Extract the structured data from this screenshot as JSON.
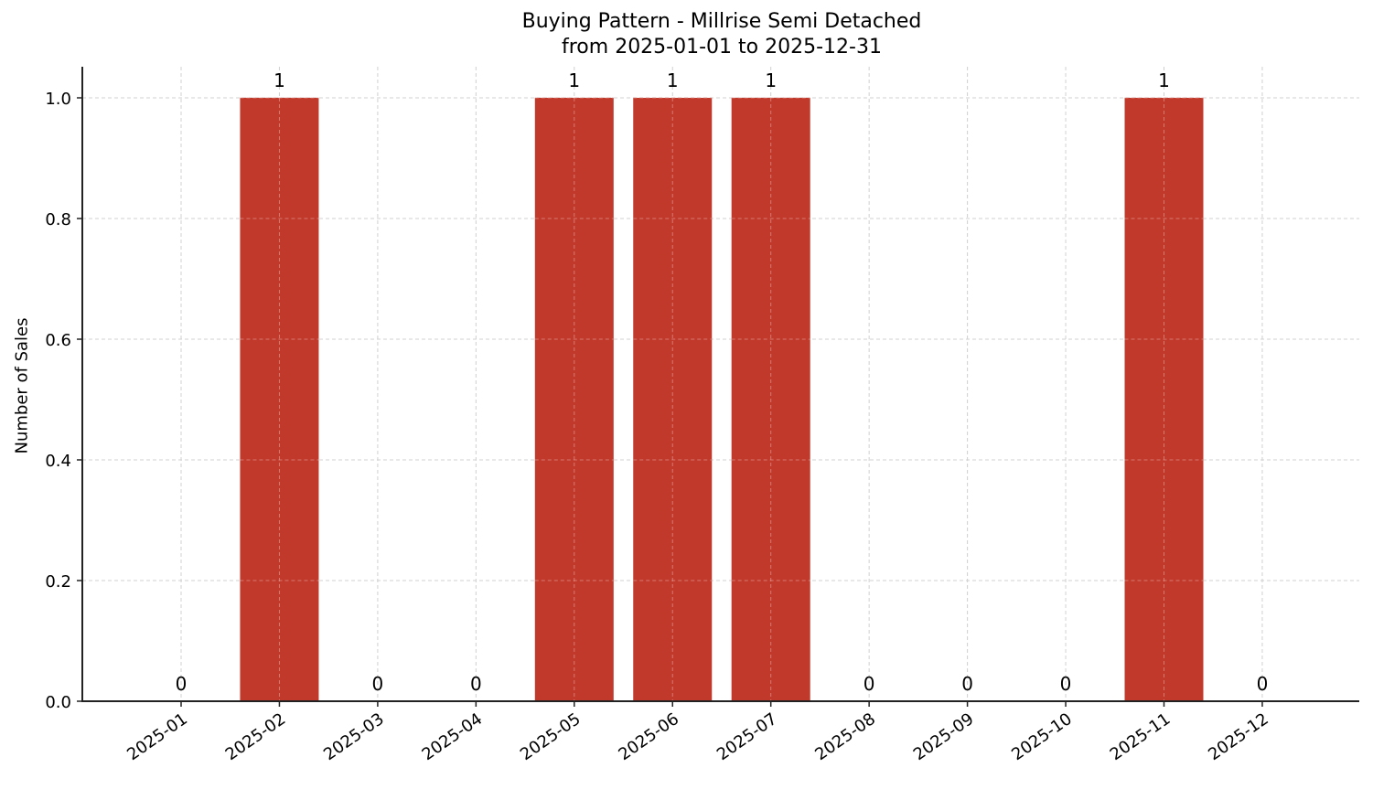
{
  "chart_data": {
    "type": "bar",
    "title": "Buying Pattern - Millrise Semi Detached",
    "subtitle": "from 2025-01-01 to 2025-12-31",
    "xlabel": "",
    "ylabel": "Number of Sales",
    "categories": [
      "2025-01",
      "2025-02",
      "2025-03",
      "2025-04",
      "2025-05",
      "2025-06",
      "2025-07",
      "2025-08",
      "2025-09",
      "2025-10",
      "2025-11",
      "2025-12"
    ],
    "values": [
      0,
      1,
      0,
      0,
      1,
      1,
      1,
      0,
      0,
      0,
      1,
      0
    ],
    "data_labels": [
      "0",
      "1",
      "0",
      "0",
      "1",
      "1",
      "1",
      "0",
      "0",
      "0",
      "1",
      "0"
    ],
    "ylim": [
      0,
      1.05
    ],
    "yticks": [
      "0.0",
      "0.2",
      "0.4",
      "0.6",
      "0.8",
      "1.0"
    ],
    "grid": true,
    "grid_style": "dashed",
    "legend": null,
    "bar_color": "#c0392b"
  }
}
